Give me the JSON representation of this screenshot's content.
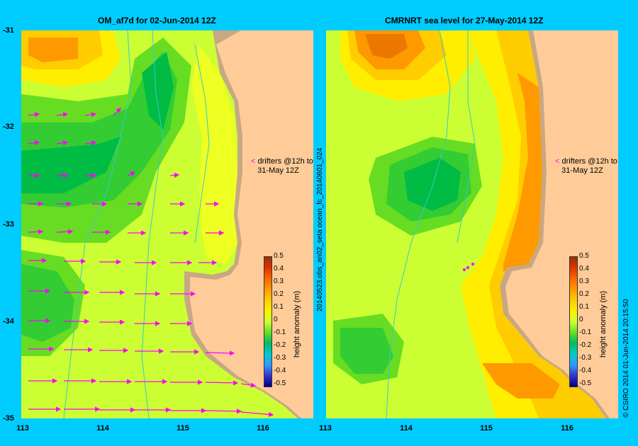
{
  "left_title": "OM_af7d for 02-Jun-2014 12Z",
  "right_title": "CMRNRT sea level  for 27-May-2014 12Z",
  "y_ticks": [
    "-31",
    "-32",
    "-33",
    "-34",
    "-35"
  ],
  "x_ticks": [
    "113",
    "114",
    "115",
    "116"
  ],
  "drifter_note_line1": "drifters @12h to",
  "drifter_note_line2": "31-May 12Z",
  "colorbar": {
    "label": "height anomaly (m)",
    "ticks": [
      "0.5",
      "0.4",
      "0.3",
      "0.2",
      "0.1",
      "0",
      "-0.1",
      "-0.2",
      "-0.3",
      "-0.4",
      "-0.5"
    ]
  },
  "right_side_label": "20140523.obs_an02_seta      ocean_fc_20140601_024",
  "copyright": "© CSIRO 2014   01-Jun-2014 20:15:50",
  "colors": {
    "background": "#00ccff",
    "land": "#ffcc99",
    "shelf": "#c8a882",
    "vector": "#ff00ff",
    "bathymetry": "#33cccc"
  }
}
